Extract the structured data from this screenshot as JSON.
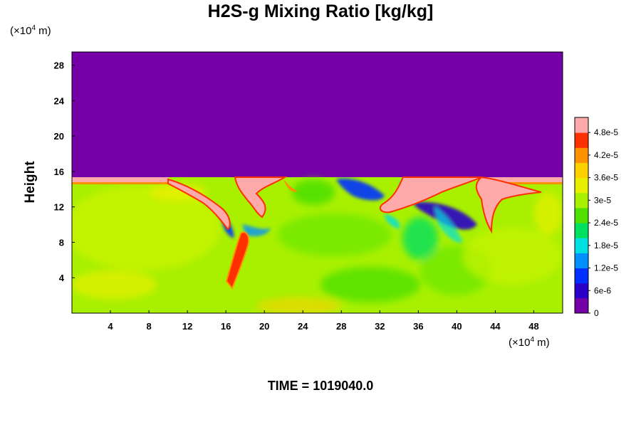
{
  "chart_data": {
    "type": "heatmap",
    "title": "H2S-g Mixing Ratio [kg/kg]",
    "ylabel": "Height",
    "unit_prefix": "(×10",
    "unit_exp": "4",
    "unit_suffix": " m)",
    "time_label": "TIME = 1019040.0",
    "x_ticks": [
      4,
      8,
      12,
      16,
      20,
      24,
      28,
      32,
      36,
      40,
      44,
      48
    ],
    "y_ticks": [
      4,
      8,
      12,
      16,
      20,
      24,
      28
    ],
    "xlim": [
      0,
      51
    ],
    "ylim": [
      0,
      29.5
    ],
    "colorbar": {
      "range": [
        0,
        5.2e-05
      ],
      "ticks": [
        {
          "label": "0",
          "value": 0
        },
        {
          "label": "6e-6",
          "value": 6e-06
        },
        {
          "label": "1.2e-5",
          "value": 1.2e-05
        },
        {
          "label": "1.8e-5",
          "value": 1.8e-05
        },
        {
          "label": "2.4e-5",
          "value": 2.4e-05
        },
        {
          "label": "3e-5",
          "value": 3e-05
        },
        {
          "label": "3.6e-5",
          "value": 3.6e-05
        },
        {
          "label": "4.2e-5",
          "value": 4.2e-05
        },
        {
          "label": "4.8e-5",
          "value": 4.8e-05
        }
      ],
      "colors": [
        "#7500a8",
        "#2a00c8",
        "#0030ff",
        "#0090ff",
        "#00e0e0",
        "#00e060",
        "#50e000",
        "#a8f000",
        "#e8f000",
        "#ffd000",
        "#ff9000",
        "#ff3000",
        "#ffaaaa"
      ]
    }
  }
}
